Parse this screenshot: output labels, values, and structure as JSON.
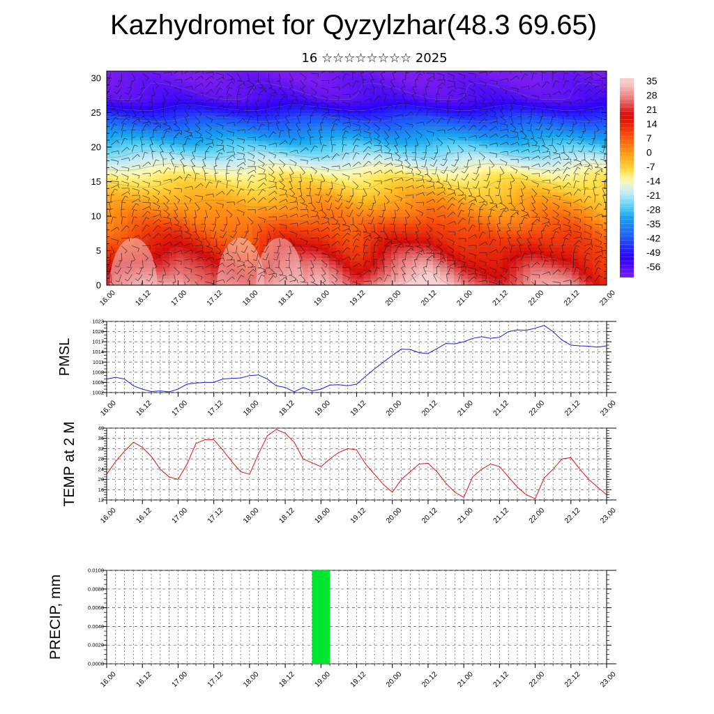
{
  "header": {
    "title": "Kazhydromet for Qyzylzhar(48.3 69.65)",
    "subtitle": "16 ☆☆☆☆☆☆☆☆ 2025"
  },
  "chart_data": [
    {
      "type": "heatmap",
      "name": "Temperature cross-section with wind barbs",
      "x_ticks": [
        "16.00",
        "16.12",
        "17.00",
        "17.12",
        "18.00",
        "18.12",
        "19.00",
        "19.12",
        "20.00",
        "20.12",
        "21.00",
        "21.12",
        "22.00",
        "22.12",
        "23.00"
      ],
      "xlim": [
        0,
        14
      ],
      "y_ticks": [
        "0",
        "5",
        "10",
        "15",
        "20",
        "25",
        "30"
      ],
      "ylim": [
        0,
        31
      ],
      "colorbar_labels": [
        "35",
        "28",
        "21",
        "14",
        "7",
        "0",
        "-7",
        "-14",
        "-21",
        "-28",
        "-35",
        "-42",
        "-49",
        "-56"
      ],
      "colorbar_range": [
        -60,
        38
      ],
      "colors": [
        "#7a1cf0",
        "#2a00ff",
        "#1e5cff",
        "#16a8f0",
        "#5ad2f5",
        "#c9ecf5",
        "#fff9b0",
        "#ffe24a",
        "#ffb21f",
        "#ff7a12",
        "#f23a0b",
        "#d40a0a",
        "#e87a7a",
        "#f7cfcf"
      ],
      "color_stops": [
        -60,
        -50,
        -40,
        -30,
        -25,
        -18,
        -12,
        -8,
        -2,
        5,
        12,
        20,
        28,
        36
      ],
      "surface_temp_profile": [
        22,
        30,
        35,
        26,
        20,
        34,
        35,
        23,
        36,
        40,
        28,
        24,
        32,
        30,
        17
      ]
    },
    {
      "type": "line",
      "ylabel": "PMSL",
      "y_ticks": [
        "1002",
        "1005",
        "1008",
        "1011",
        "1014",
        "1017",
        "1020",
        "1023"
      ],
      "ylim": [
        1002,
        1023
      ],
      "x_ticks": [
        "16.00",
        "16.12",
        "17.00",
        "17.12",
        "18.00",
        "18.12",
        "19.00",
        "19.12",
        "20.00",
        "20.12",
        "21.00",
        "21.12",
        "22.00",
        "22.12",
        "23.00"
      ],
      "xlim": [
        0,
        14
      ],
      "color": "#1c1cd8",
      "x": [
        0,
        0.25,
        0.5,
        0.75,
        1,
        1.25,
        1.5,
        1.75,
        2,
        2.25,
        2.5,
        2.75,
        3,
        3.25,
        3.5,
        3.75,
        4,
        4.25,
        4.5,
        4.75,
        5,
        5.25,
        5.5,
        5.75,
        6,
        6.25,
        6.5,
        6.75,
        7,
        7.25,
        7.5,
        7.75,
        8,
        8.25,
        8.5,
        8.75,
        9,
        9.25,
        9.5,
        9.75,
        10,
        10.25,
        10.5,
        10.75,
        11,
        11.25,
        11.5,
        11.75,
        12,
        12.25,
        12.5,
        12.75,
        13,
        13.25,
        13.5,
        13.75,
        14
      ],
      "values": [
        1006,
        1006.5,
        1006,
        1004,
        1003,
        1002.3,
        1002.5,
        1002.2,
        1003,
        1004.5,
        1004.8,
        1005,
        1005,
        1006,
        1006.2,
        1006.3,
        1007,
        1007.2,
        1006,
        1004,
        1003.5,
        1002.2,
        1003.5,
        1002.5,
        1003,
        1004.2,
        1004.3,
        1004,
        1004.5,
        1006.8,
        1009,
        1011,
        1013,
        1014.8,
        1014.7,
        1013.8,
        1013.5,
        1015,
        1016.5,
        1016.4,
        1017,
        1018,
        1018.5,
        1018,
        1018.3,
        1020,
        1020.5,
        1020.4,
        1021,
        1021.8,
        1020,
        1017.5,
        1016,
        1015.8,
        1015.7,
        1015.4,
        1015.8
      ]
    },
    {
      "type": "line",
      "ylabel": "TEMP at 2 M",
      "y_ticks": [
        "12",
        "16",
        "20",
        "24",
        "28",
        "32",
        "36",
        "40"
      ],
      "ylim": [
        12,
        40
      ],
      "x_ticks": [
        "16.00",
        "16.12",
        "17.00",
        "17.12",
        "18.00",
        "18.12",
        "19.00",
        "19.12",
        "20.00",
        "20.12",
        "21.00",
        "21.12",
        "22.00",
        "22.12",
        "23.00"
      ],
      "xlim": [
        0,
        14
      ],
      "color": "#e01010",
      "x": [
        0,
        0.25,
        0.5,
        0.75,
        1,
        1.25,
        1.5,
        1.75,
        2,
        2.25,
        2.5,
        2.75,
        3,
        3.25,
        3.5,
        3.75,
        4,
        4.25,
        4.5,
        4.75,
        5,
        5.25,
        5.5,
        5.75,
        6,
        6.25,
        6.5,
        6.75,
        7,
        7.25,
        7.5,
        7.75,
        8,
        8.25,
        8.5,
        8.75,
        9,
        9.25,
        9.5,
        9.75,
        10,
        10.25,
        10.5,
        10.75,
        11,
        11.25,
        11.5,
        11.75,
        12,
        12.25,
        12.5,
        12.75,
        13,
        13.25,
        13.5,
        13.75,
        14
      ],
      "values": [
        22,
        27,
        31,
        34.5,
        32.5,
        29,
        24,
        21,
        20,
        26,
        34,
        35.5,
        35.5,
        31.5,
        27,
        23,
        22,
        30,
        37,
        39.5,
        38,
        34.5,
        28,
        26.5,
        25,
        28,
        30.5,
        32,
        31.5,
        26,
        22,
        18,
        15,
        20,
        23,
        26,
        26.3,
        23,
        18.5,
        15,
        13,
        21,
        24,
        26,
        25,
        21,
        17,
        14,
        12.5,
        20.5,
        24,
        28,
        28.5,
        24,
        20,
        17,
        14
      ]
    },
    {
      "type": "bar",
      "ylabel": "PRECIP, mm",
      "y_ticks": [
        "0.0000",
        "0.0020",
        "0.0040",
        "0.0060",
        "0.0080",
        "0.0100"
      ],
      "ylim": [
        0,
        0.01
      ],
      "x_ticks": [
        "16.00",
        "16.12",
        "17.00",
        "17.12",
        "18.00",
        "18.12",
        "19.00",
        "19.12",
        "20.00",
        "20.12",
        "21.00",
        "21.12",
        "22.00",
        "22.12",
        "23.00"
      ],
      "xlim": [
        0,
        14
      ],
      "color": "#00e62e",
      "bars": [
        {
          "x_start": 5.75,
          "x_end": 6.25,
          "value": 0.01
        }
      ]
    }
  ]
}
